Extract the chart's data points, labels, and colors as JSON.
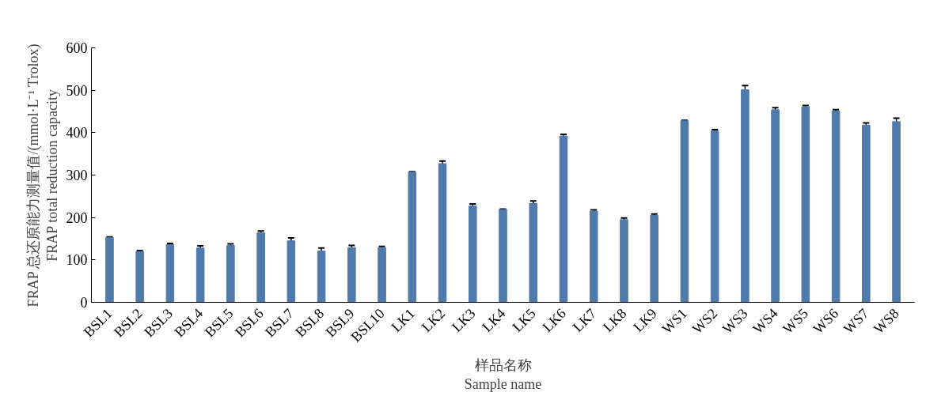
{
  "chart_data": {
    "type": "bar",
    "xlabel": "样品名称\nSample name",
    "ylabel": "FRAP 总还原能力测量值/(mmol·L⁻¹ Trolox)\nFRAP total reduction capacity",
    "categories": [
      "BSL1",
      "BSL2",
      "BSL3",
      "BSL4",
      "BSL5",
      "BSL6",
      "BSL7",
      "BSL8",
      "BSL9",
      "BSL10",
      "LK1",
      "LK2",
      "LK3",
      "LK4",
      "LK5",
      "LK6",
      "LK7",
      "LK8",
      "LK9",
      "WS1",
      "WS2",
      "WS3",
      "WS4",
      "WS5",
      "WS6",
      "WS7",
      "WS8"
    ],
    "values": [
      153,
      120,
      136,
      128,
      134,
      164,
      145,
      121,
      129,
      129,
      307,
      327,
      227,
      219,
      233,
      392,
      215,
      195,
      205,
      428,
      404,
      501,
      454,
      461,
      451,
      418,
      426
    ],
    "errors": [
      1,
      2,
      3,
      5,
      4,
      4,
      7,
      7,
      5,
      3,
      1,
      6,
      5,
      1,
      6,
      4,
      3,
      4,
      3,
      1,
      3,
      10,
      5,
      3,
      3,
      5,
      8
    ],
    "color": "#4f7aab",
    "ylim": [
      0,
      600
    ],
    "yticks": [
      0,
      100,
      200,
      300,
      400,
      500,
      600
    ],
    "grid": false
  }
}
